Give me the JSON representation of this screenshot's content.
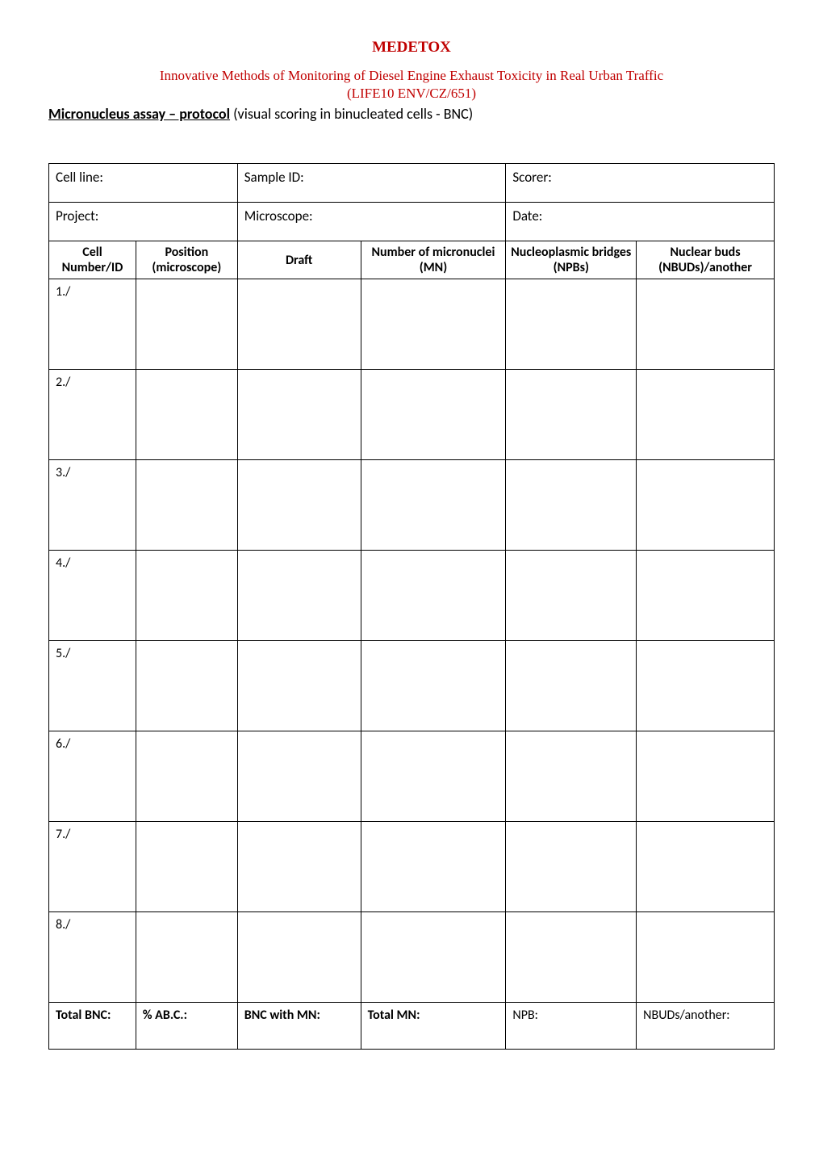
{
  "header": {
    "title": "MEDETOX",
    "title_color": "#c00000",
    "subtitle_line1": "Innovative Methods of Monitoring of Diesel Engine Exhaust Toxicity in Real Urban Traffic",
    "subtitle_line2": "(LIFE10  ENV/CZ/651)",
    "subtitle_color": "#c00000",
    "heading_bold": "Micronucleus assay – protocol",
    "heading_rest": " (visual scoring in binucleated cells - BNC)"
  },
  "info_labels": {
    "cell_line": "Cell line:",
    "sample_id": "Sample ID:",
    "scorer": "Scorer:",
    "project": "Project:",
    "microscope": "Microscope:",
    "date": "Date:"
  },
  "columns": {
    "col1": "Cell Number/ID",
    "col2": "Position (microscope)",
    "col3": "Draft",
    "col4": "Number of micronuclei (MN)",
    "col5": "Nucleoplasmic bridges (NPBs)",
    "col6": "Nuclear buds (NBUDs)/another"
  },
  "rows": {
    "r1": "1./",
    "r2": "2./",
    "r3": "3./",
    "r4": "4./",
    "r5": "5./",
    "r6": "6./",
    "r7": "7./",
    "r8": "8./"
  },
  "totals": {
    "t1": "Total BNC:",
    "t2": "% AB.C.:",
    "t3": "BNC with MN:",
    "t4": "Total MN:",
    "t5": "NPB:",
    "t6": "NBUDs/another:"
  },
  "col_widths": {
    "c1": "12%",
    "c2": "14%",
    "c3": "17%",
    "c4": "20%",
    "c5": "18%",
    "c6": "19%"
  }
}
